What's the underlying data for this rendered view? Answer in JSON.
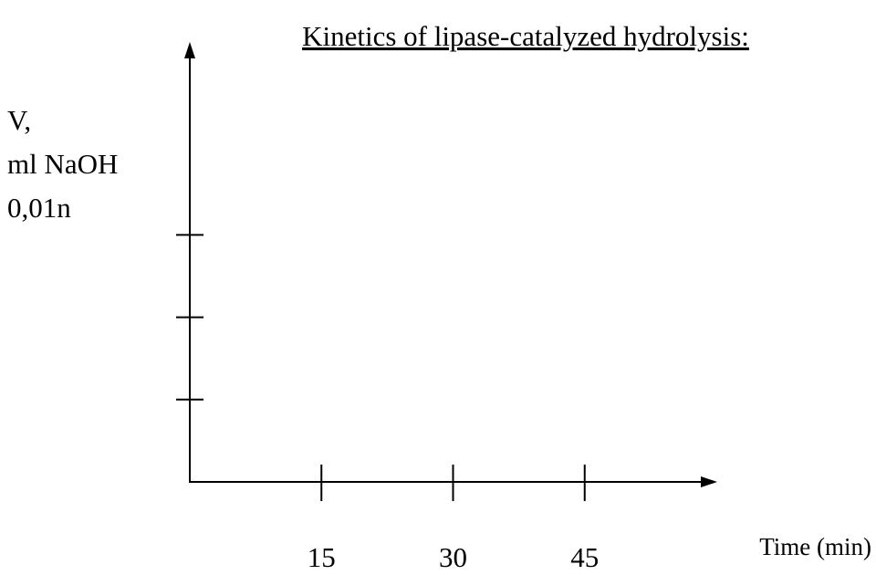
{
  "chart_data": {
    "type": "line",
    "title": "Kinetics of lipase-catalyzed hydrolysis:",
    "x_label": "Time (min)",
    "y_label": [
      "V,",
      "ml NaOH",
      "0,01n"
    ],
    "series": [],
    "xlim": [
      0,
      60
    ],
    "xticks": [
      15,
      30,
      45
    ],
    "ylim": [
      0,
      5.3
    ],
    "yticks": [
      1,
      2,
      3
    ],
    "grid": false,
    "color": "#000000"
  }
}
